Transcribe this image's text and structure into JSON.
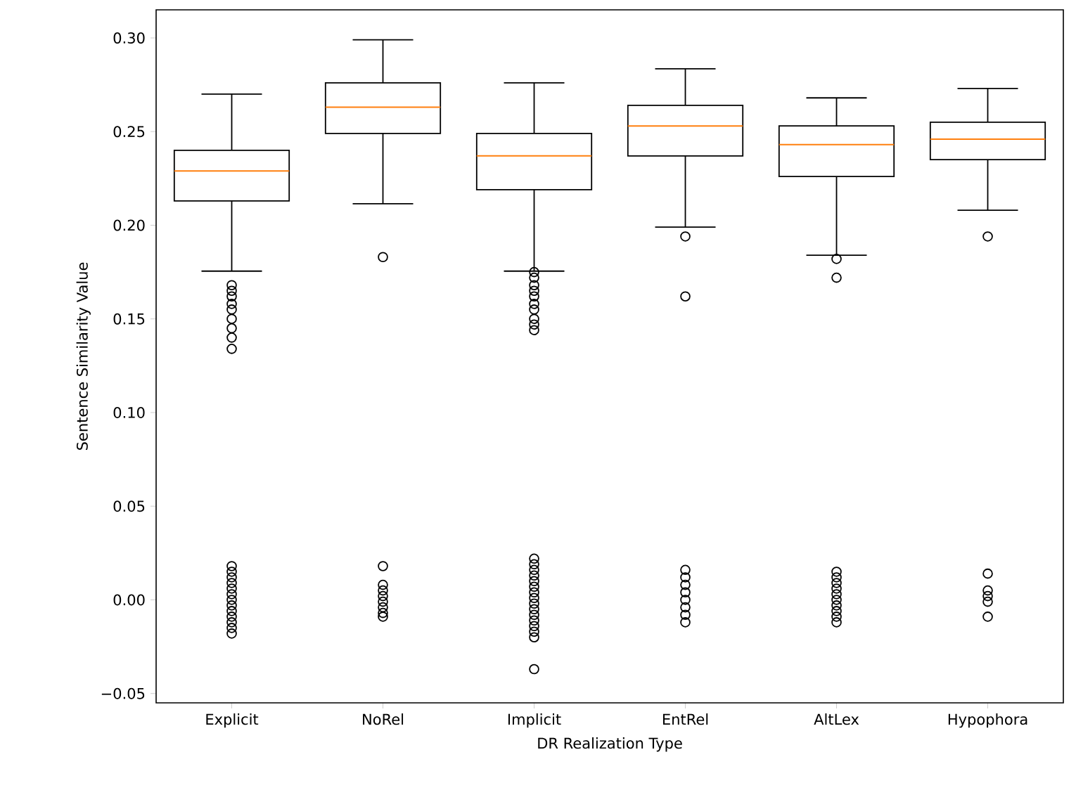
{
  "chart_data": {
    "type": "box",
    "xlabel": "DR Realization Type",
    "ylabel": "Sentence Similarity Value",
    "categories": [
      "Explicit",
      "NoRel",
      "Implicit",
      "EntRel",
      "AltLex",
      "Hypophora"
    ],
    "ylim": [
      -0.055,
      0.315
    ],
    "yticks": [
      {
        "value": -0.05,
        "label": "−0.05"
      },
      {
        "value": 0,
        "label": "0.00"
      },
      0.05,
      {
        "value": 0.1,
        "label": "0.10"
      },
      0.15,
      {
        "value": 0.2,
        "label": "0.20"
      },
      0.25,
      {
        "value": 0.3,
        "label": "0.30"
      }
    ],
    "marker": "circle",
    "boxes": [
      {
        "low": 0.1755,
        "q1": 0.213,
        "median": 0.229,
        "q3": 0.24,
        "high": 0.27,
        "outliers": [
          0.168,
          0.165,
          0.162,
          0.158,
          0.155,
          0.15,
          0.145,
          0.14,
          0.134,
          0.018,
          0.015,
          0.012,
          0.009,
          0.006,
          0.003,
          0,
          -0.003,
          -0.006,
          -0.009,
          -0.012,
          -0.015,
          -0.018
        ]
      },
      {
        "low": 0.2115,
        "q1": 0.249,
        "median": 0.263,
        "q3": 0.276,
        "high": 0.299,
        "outliers": [
          0.183,
          0.018,
          0.008,
          0.005,
          0.002,
          -0.001,
          -0.004,
          -0.007,
          -0.009
        ]
      },
      {
        "low": 0.1755,
        "q1": 0.219,
        "median": 0.237,
        "q3": 0.249,
        "high": 0.276,
        "outliers": [
          0.175,
          0.172,
          0.168,
          0.165,
          0.162,
          0.158,
          0.155,
          0.15,
          0.147,
          0.144,
          0.022,
          0.019,
          0.016,
          0.013,
          0.01,
          0.007,
          0.004,
          0.001,
          -0.002,
          -0.005,
          -0.008,
          -0.011,
          -0.014,
          -0.017,
          -0.02,
          -0.037
        ]
      },
      {
        "low": 0.199,
        "q1": 0.237,
        "median": 0.253,
        "q3": 0.264,
        "high": 0.2835,
        "outliers": [
          0.194,
          0.162,
          0.016,
          0.012,
          0.008,
          0.004,
          0,
          -0.004,
          -0.008,
          -0.012
        ]
      },
      {
        "low": 0.184,
        "q1": 0.226,
        "median": 0.243,
        "q3": 0.253,
        "high": 0.268,
        "outliers": [
          0.182,
          0.172,
          0.015,
          0.012,
          0.009,
          0.006,
          0.003,
          0,
          -0.003,
          -0.006,
          -0.009,
          -0.012
        ]
      },
      {
        "low": 0.208,
        "q1": 0.235,
        "median": 0.246,
        "q3": 0.255,
        "high": 0.273,
        "outliers": [
          0.194,
          0.014,
          0.005,
          0.002,
          -0.001,
          -0.009
        ]
      }
    ]
  }
}
